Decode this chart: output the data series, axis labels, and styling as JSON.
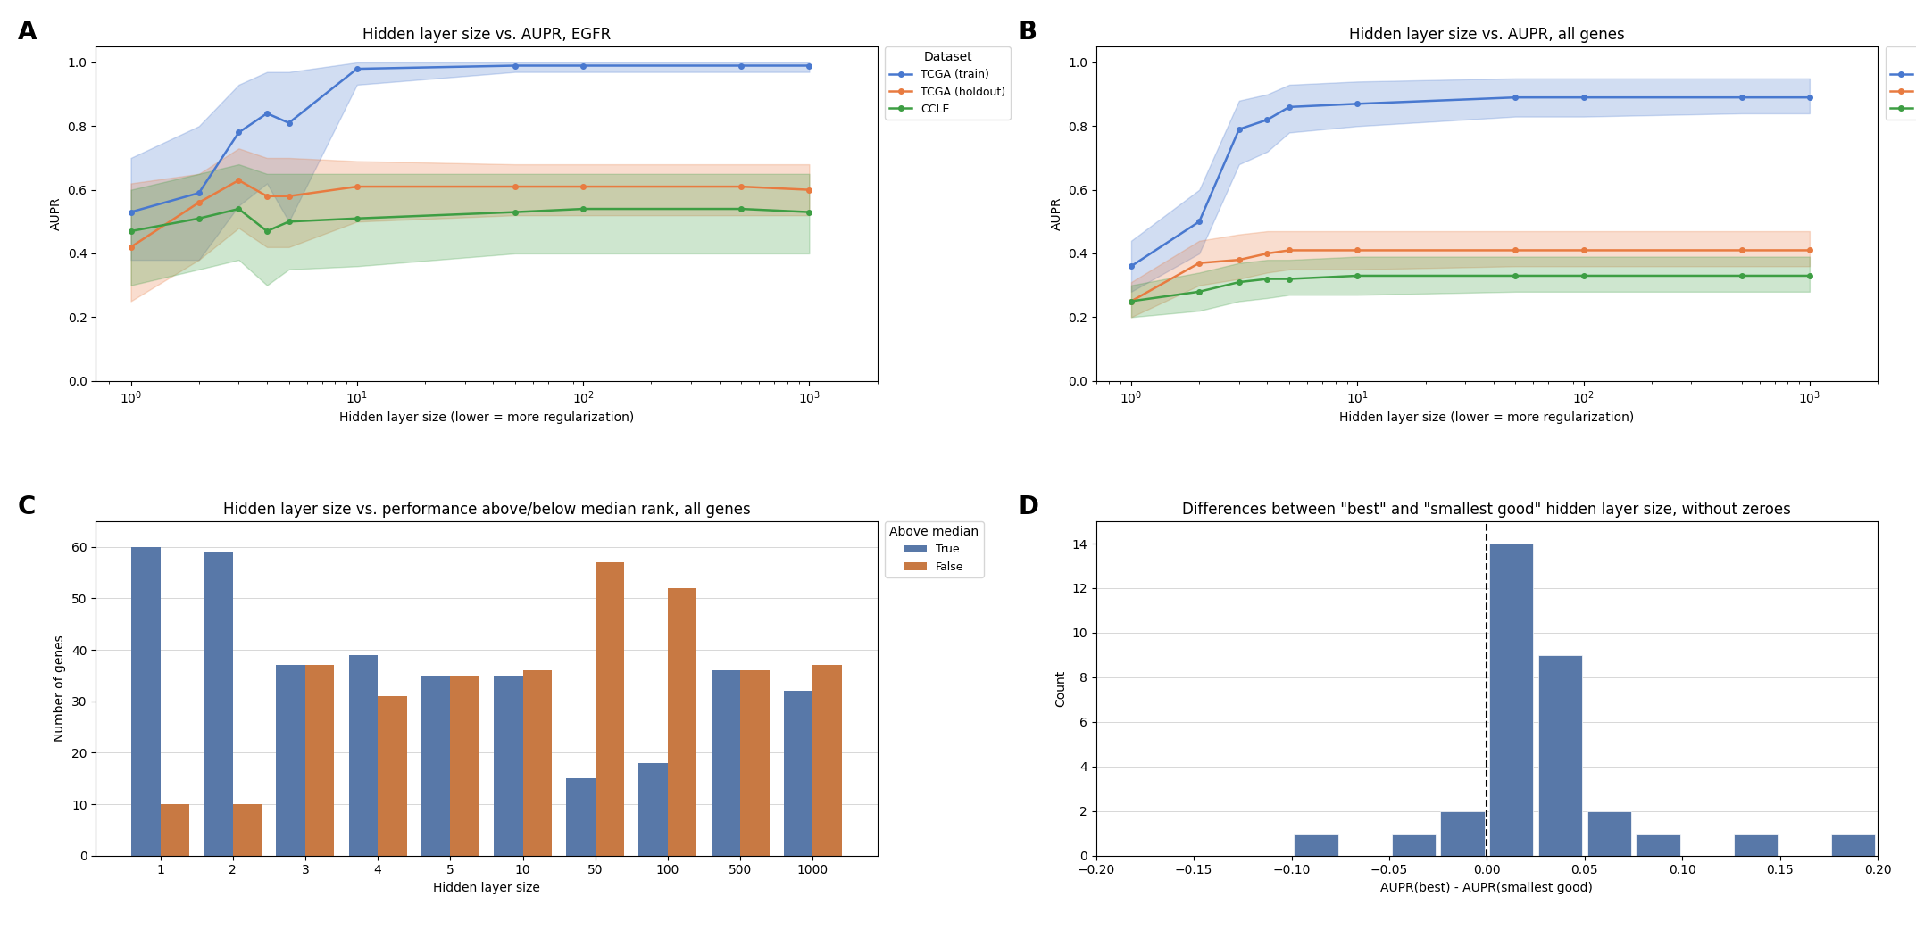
{
  "hidden_sizes": [
    1,
    2,
    3,
    4,
    5,
    10,
    50,
    100,
    500,
    1000
  ],
  "hidden_sizes_log": [
    1,
    2,
    3,
    4,
    5,
    10,
    50,
    100,
    500,
    1000
  ],
  "egfr_train_mean": [
    0.53,
    0.59,
    0.78,
    0.84,
    0.81,
    0.98,
    0.99,
    0.99,
    0.99,
    0.99
  ],
  "egfr_train_low": [
    0.38,
    0.38,
    0.55,
    0.62,
    0.5,
    0.93,
    0.97,
    0.97,
    0.97,
    0.97
  ],
  "egfr_train_high": [
    0.7,
    0.8,
    0.93,
    0.97,
    0.97,
    1.0,
    1.0,
    1.0,
    1.0,
    1.0
  ],
  "egfr_holdout_mean": [
    0.42,
    0.56,
    0.63,
    0.58,
    0.58,
    0.61,
    0.61,
    0.61,
    0.61,
    0.6
  ],
  "egfr_holdout_low": [
    0.25,
    0.38,
    0.48,
    0.42,
    0.42,
    0.5,
    0.52,
    0.52,
    0.52,
    0.52
  ],
  "egfr_holdout_high": [
    0.62,
    0.65,
    0.73,
    0.7,
    0.7,
    0.69,
    0.68,
    0.68,
    0.68,
    0.68
  ],
  "egfr_ccle_mean": [
    0.47,
    0.51,
    0.54,
    0.47,
    0.5,
    0.51,
    0.53,
    0.54,
    0.54,
    0.53
  ],
  "egfr_ccle_low": [
    0.3,
    0.35,
    0.38,
    0.3,
    0.35,
    0.36,
    0.4,
    0.4,
    0.4,
    0.4
  ],
  "egfr_ccle_high": [
    0.6,
    0.65,
    0.68,
    0.65,
    0.65,
    0.65,
    0.65,
    0.65,
    0.65,
    0.65
  ],
  "all_train_mean": [
    0.36,
    0.5,
    0.79,
    0.82,
    0.86,
    0.87,
    0.89,
    0.89,
    0.89,
    0.89
  ],
  "all_train_low": [
    0.28,
    0.4,
    0.68,
    0.72,
    0.78,
    0.8,
    0.83,
    0.83,
    0.84,
    0.84
  ],
  "all_train_high": [
    0.44,
    0.6,
    0.88,
    0.9,
    0.93,
    0.94,
    0.95,
    0.95,
    0.95,
    0.95
  ],
  "all_holdout_mean": [
    0.25,
    0.37,
    0.38,
    0.4,
    0.41,
    0.41,
    0.41,
    0.41,
    0.41,
    0.41
  ],
  "all_holdout_low": [
    0.2,
    0.3,
    0.32,
    0.34,
    0.35,
    0.35,
    0.36,
    0.36,
    0.36,
    0.36
  ],
  "all_holdout_high": [
    0.31,
    0.44,
    0.46,
    0.47,
    0.47,
    0.47,
    0.47,
    0.47,
    0.47,
    0.47
  ],
  "all_ccle_mean": [
    0.25,
    0.28,
    0.31,
    0.32,
    0.32,
    0.33,
    0.33,
    0.33,
    0.33,
    0.33
  ],
  "all_ccle_low": [
    0.2,
    0.22,
    0.25,
    0.26,
    0.27,
    0.27,
    0.28,
    0.28,
    0.28,
    0.28
  ],
  "all_ccle_high": [
    0.3,
    0.34,
    0.37,
    0.38,
    0.38,
    0.39,
    0.39,
    0.39,
    0.39,
    0.39
  ],
  "bar_categories": [
    "1",
    "2",
    "3",
    "4",
    "5",
    "10",
    "50",
    "100",
    "500",
    "1000"
  ],
  "bar_true": [
    60,
    59,
    37,
    39,
    35,
    35,
    15,
    18,
    36,
    32
  ],
  "bar_false": [
    10,
    10,
    37,
    31,
    35,
    36,
    57,
    52,
    36,
    37
  ],
  "hist_bins": [
    -0.2,
    -0.175,
    -0.15,
    -0.125,
    -0.1,
    -0.075,
    -0.05,
    -0.025,
    0.0,
    0.025,
    0.05,
    0.075,
    0.1,
    0.125,
    0.15,
    0.175,
    0.2
  ],
  "hist_counts": [
    0,
    0,
    0,
    0,
    1,
    0,
    1,
    2,
    14,
    9,
    2,
    1,
    0,
    1,
    0,
    1
  ],
  "color_train": "#4878CF",
  "color_holdout": "#E87B40",
  "color_ccle": "#3D9E43",
  "color_true": "#5878A8",
  "color_false": "#C87943",
  "title_A": "Hidden layer size vs. AUPR, EGFR",
  "title_B": "Hidden layer size vs. AUPR, all genes",
  "title_C": "Hidden layer size vs. performance above/below median rank, all genes",
  "title_D": "Differences between \"best\" and \"smallest good\" hidden layer size, without zeroes",
  "xlabel_AB": "Hidden layer size (lower = more regularization)",
  "ylabel_AB": "AUPR",
  "xlabel_C": "Hidden layer size",
  "ylabel_C": "Number of genes",
  "xlabel_D": "AUPR(best) - AUPR(smallest good)",
  "ylabel_D": "Count"
}
